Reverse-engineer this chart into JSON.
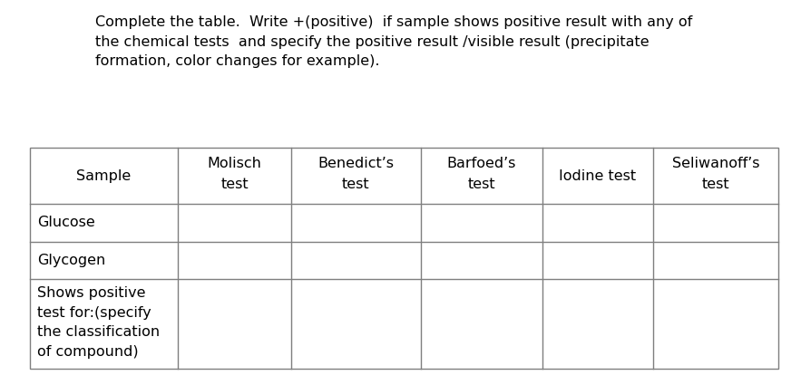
{
  "title_text": "Complete the table.  Write +(positive)  if sample shows positive result with any of\nthe chemical tests  and specify the positive result /visible result (precipitate\nformation, color changes for example).",
  "col_headers_line1": [
    "Sample",
    "Molisch",
    "Benedict’s",
    "Barfoed’s",
    "Iodine test",
    "Seliwanoff’s"
  ],
  "col_headers_line2": [
    "",
    "test",
    "test",
    "test",
    "",
    "test"
  ],
  "row_labels": [
    "Glucose",
    "Glycogen",
    "Shows positive\ntest for:(specify\nthe classification\nof compound)"
  ],
  "background_color": "#ffffff",
  "text_color": "#000000",
  "line_color": "#7f7f7f",
  "title_fontsize": 11.5,
  "table_fontsize": 11.5,
  "fig_width": 8.83,
  "fig_height": 4.25
}
